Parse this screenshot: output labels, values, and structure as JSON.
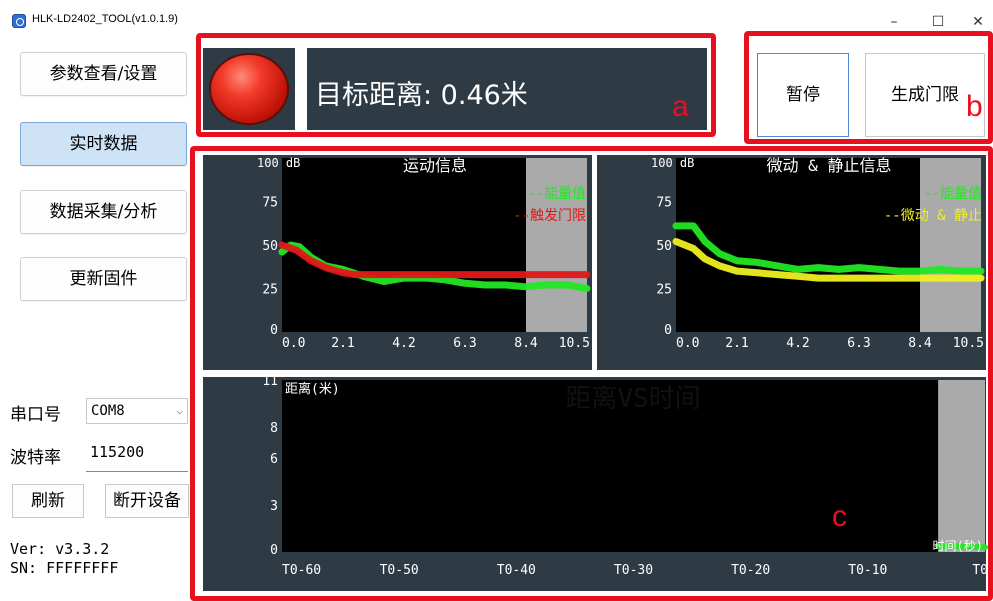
{
  "window": {
    "title": "HLK-LD2402_TOOL(v1.0.1.9)",
    "minimize": "–",
    "maximize": "☐",
    "close": "✕"
  },
  "sidebar": {
    "buttons": [
      {
        "label": "参数查看/设置"
      },
      {
        "label": "实时数据"
      },
      {
        "label": "数据采集/分析"
      },
      {
        "label": "更新固件"
      }
    ],
    "port_label": "串口号",
    "port_value": "COM8",
    "baud_label": "波特率",
    "baud_value": "115200",
    "refresh_label": "刷新",
    "disconnect_label": "断开设备",
    "version": "Ver: v3.3.2",
    "sn": "SN: FFFFFFFF"
  },
  "status": {
    "distance_text": "目标距离: 0.46米",
    "indicator_color": "#e0281a"
  },
  "toolbar": {
    "pause_label": "暂停",
    "gen_threshold_label": "生成门限"
  },
  "annotations": {
    "a": "a",
    "b": "b",
    "c": "c"
  },
  "colors": {
    "annotation": "#e8101e",
    "panel": "#2e3a44",
    "energy": "#22e822",
    "trigger": "#e01818",
    "static": "#f0f020"
  },
  "chart_data": [
    {
      "type": "line",
      "title": "运动信息",
      "y_unit": "100 dB",
      "xlim": [
        0,
        10.5
      ],
      "ylim": [
        0,
        100
      ],
      "x_ticks": [
        "0.0",
        "2.1",
        "4.2",
        "6.3",
        "8.4",
        "10.5"
      ],
      "y_ticks": [
        "0",
        "25",
        "50",
        "75"
      ],
      "shaded_region": [
        8.4,
        10.5
      ],
      "legend": [
        "--能量值",
        "--触发门限"
      ],
      "series": [
        {
          "name": "--能量值",
          "color": "#22e822",
          "x": [
            0,
            0.3,
            0.6,
            1.0,
            1.5,
            2.1,
            2.8,
            3.5,
            4.2,
            5.0,
            5.6,
            6.3,
            7.0,
            7.7,
            8.4,
            9.0,
            9.8,
            10.5
          ],
          "y": [
            46,
            50,
            49,
            43,
            38,
            36,
            32,
            29,
            31,
            31,
            30,
            28,
            27,
            27,
            26,
            27,
            27,
            25
          ]
        },
        {
          "name": "--触发门限",
          "color": "#e01818",
          "x": [
            0,
            0.5,
            1.0,
            1.5,
            2.1,
            2.5,
            10.5
          ],
          "y": [
            50,
            47,
            41,
            37,
            34,
            33,
            33
          ]
        }
      ]
    },
    {
      "type": "line",
      "title": "微动 & 静止信息",
      "y_unit": "100 dB",
      "xlim": [
        0,
        10.5
      ],
      "ylim": [
        0,
        100
      ],
      "x_ticks": [
        "0.0",
        "2.1",
        "4.2",
        "6.3",
        "8.4",
        "10.5"
      ],
      "y_ticks": [
        "0",
        "25",
        "50",
        "75"
      ],
      "shaded_region": [
        8.4,
        10.5
      ],
      "legend": [
        "--能量值",
        "--微动 & 静止"
      ],
      "series": [
        {
          "name": "--能量值",
          "color": "#22e822",
          "x": [
            0,
            0.6,
            1.0,
            1.5,
            2.1,
            2.8,
            3.5,
            4.2,
            4.9,
            5.6,
            6.3,
            7.0,
            7.7,
            8.4,
            9.1,
            9.8,
            10.5
          ],
          "y": [
            61,
            61,
            52,
            45,
            41,
            40,
            38,
            36,
            37,
            36,
            37,
            36,
            35,
            35,
            36,
            35,
            35
          ]
        },
        {
          "name": "--微动 & 静止",
          "color": "#f0f020",
          "x": [
            0,
            0.6,
            1.0,
            1.5,
            2.1,
            2.8,
            3.5,
            4.2,
            4.9,
            5.6,
            6.3,
            7.0,
            7.7,
            8.4,
            9.1,
            9.8,
            10.5
          ],
          "y": [
            52,
            48,
            42,
            38,
            35,
            34,
            33,
            32,
            31,
            31,
            31,
            31,
            31,
            31,
            31,
            31,
            31
          ]
        }
      ]
    },
    {
      "type": "line",
      "title": "距离VS时间",
      "ylabel": "距离(米)",
      "xlabel": "时间(秒)",
      "xlim": [
        -60,
        0
      ],
      "ylim": [
        0,
        11
      ],
      "x_ticks": [
        "T0-60",
        "T0-50",
        "T0-40",
        "T0-30",
        "T0-20",
        "T0-10",
        "T0"
      ],
      "y_ticks": [
        "0",
        "3",
        "6",
        "8",
        "11"
      ],
      "shaded_region": [
        -4,
        0
      ],
      "series": [
        {
          "color": "#22e822",
          "x": [
            -4,
            0
          ],
          "y": [
            0.4,
            0.3
          ]
        }
      ]
    }
  ]
}
